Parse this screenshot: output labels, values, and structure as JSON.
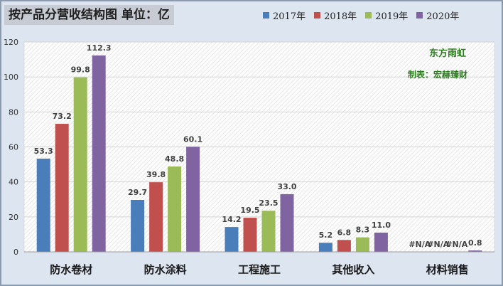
{
  "chart_data": {
    "type": "bar",
    "title": "按产品分营收结构图 单位：亿",
    "categories": [
      "防水卷材",
      "防水涂料",
      "工程施工",
      "其他收入",
      "材料销售"
    ],
    "series": [
      {
        "name": "2017年",
        "color": "#4a7ebb",
        "values": [
          53.3,
          29.7,
          14.2,
          5.2,
          null
        ],
        "labels": [
          "53.3",
          "29.7",
          "14.2",
          "5.2",
          "#N/A"
        ]
      },
      {
        "name": "2018年",
        "color": "#c0504d",
        "values": [
          73.2,
          39.8,
          19.5,
          6.8,
          null
        ],
        "labels": [
          "73.2",
          "39.8",
          "19.5",
          "6.8",
          "#N/A"
        ]
      },
      {
        "name": "2019年",
        "color": "#9bbb59",
        "values": [
          99.8,
          48.8,
          23.5,
          8.3,
          null
        ],
        "labels": [
          "99.8",
          "48.8",
          "23.5",
          "8.3",
          "#N/A"
        ]
      },
      {
        "name": "2020年",
        "color": "#8064a2",
        "values": [
          112.3,
          60.1,
          33.0,
          11.0,
          0.8
        ],
        "labels": [
          "112.3",
          "60.1",
          "33.0",
          "11.0",
          "0.8"
        ]
      }
    ],
    "ylim": [
      0,
      120
    ],
    "yticks": [
      0,
      20,
      40,
      60,
      80,
      100,
      120
    ],
    "grid": true,
    "legend_position": "top-right"
  },
  "annotations": {
    "brand": "东方雨虹",
    "credit": "制表：宏赫臻财"
  },
  "colors": {
    "background": "#dde5f1",
    "plot_area": "#ffffff",
    "annotation_text": "#2e7d20"
  }
}
